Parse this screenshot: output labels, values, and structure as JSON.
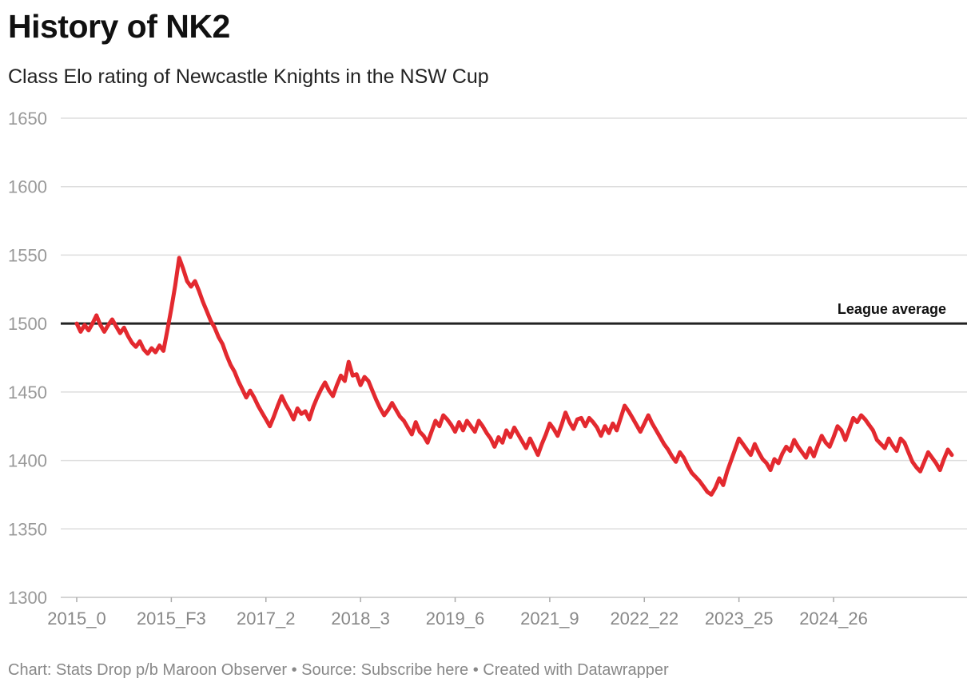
{
  "title": "History of NK2",
  "subtitle": "Class Elo rating of Newcastle Knights in the NSW Cup",
  "footer": "Chart: Stats Drop p/b Maroon Observer • Source: Subscribe here • Created with Datawrapper",
  "colors": {
    "line": "#e3292f",
    "reference": "#222222",
    "grid": "#dddddd",
    "tick_text": "#999999",
    "axis_text": "#888888"
  },
  "chart_data": {
    "type": "line",
    "title": "History of NK2",
    "subtitle": "Class Elo rating of Newcastle Knights in the NSW Cup",
    "xlabel": "",
    "ylabel": "",
    "ylim": [
      1300,
      1650
    ],
    "yticks": [
      1300,
      1350,
      1400,
      1450,
      1500,
      1550,
      1600,
      1650
    ],
    "xtick_labels": [
      "2015_0",
      "2015_F3",
      "2017_2",
      "2018_3",
      "2019_6",
      "2021_9",
      "2022_22",
      "2023_25",
      "2024_26"
    ],
    "xtick_indices": [
      0,
      24,
      48,
      72,
      96,
      120,
      144,
      168,
      192
    ],
    "reference_line": {
      "value": 1500,
      "label": "League average"
    },
    "grid": true,
    "series": [
      {
        "name": "NK2",
        "values": [
          1500,
          1494,
          1499,
          1495,
          1500,
          1506,
          1499,
          1494,
          1499,
          1503,
          1498,
          1493,
          1497,
          1491,
          1486,
          1483,
          1487,
          1481,
          1478,
          1482,
          1479,
          1484,
          1480,
          1495,
          1511,
          1528,
          1548,
          1540,
          1531,
          1527,
          1531,
          1524,
          1516,
          1509,
          1502,
          1497,
          1490,
          1485,
          1477,
          1470,
          1465,
          1458,
          1452,
          1446,
          1451,
          1446,
          1440,
          1435,
          1430,
          1425,
          1432,
          1440,
          1447,
          1441,
          1436,
          1430,
          1438,
          1434,
          1436,
          1430,
          1439,
          1446,
          1452,
          1457,
          1451,
          1447,
          1455,
          1462,
          1458,
          1472,
          1462,
          1463,
          1455,
          1461,
          1458,
          1451,
          1444,
          1438,
          1433,
          1437,
          1442,
          1437,
          1432,
          1429,
          1424,
          1419,
          1428,
          1421,
          1418,
          1413,
          1421,
          1429,
          1425,
          1433,
          1430,
          1426,
          1421,
          1428,
          1422,
          1429,
          1425,
          1421,
          1429,
          1425,
          1420,
          1416,
          1410,
          1417,
          1413,
          1422,
          1417,
          1424,
          1419,
          1414,
          1409,
          1416,
          1410,
          1404,
          1412,
          1419,
          1427,
          1423,
          1418,
          1426,
          1435,
          1428,
          1423,
          1430,
          1431,
          1425,
          1431,
          1428,
          1424,
          1418,
          1425,
          1420,
          1427,
          1422,
          1431,
          1440,
          1436,
          1431,
          1426,
          1421,
          1427,
          1433,
          1427,
          1422,
          1417,
          1412,
          1408,
          1403,
          1399,
          1406,
          1402,
          1396,
          1391,
          1388,
          1385,
          1381,
          1377,
          1375,
          1380,
          1387,
          1382,
          1392,
          1400,
          1408,
          1416,
          1412,
          1408,
          1404,
          1412,
          1406,
          1401,
          1398,
          1393,
          1401,
          1398,
          1405,
          1410,
          1407,
          1415,
          1410,
          1406,
          1402,
          1409,
          1403,
          1411,
          1418,
          1413,
          1410,
          1417,
          1425,
          1422,
          1415,
          1423,
          1431,
          1428,
          1433,
          1430,
          1426,
          1422,
          1415,
          1412,
          1409,
          1416,
          1411,
          1407,
          1416,
          1413,
          1406,
          1399,
          1395,
          1392,
          1399,
          1406,
          1402,
          1398,
          1393,
          1401,
          1408,
          1404
        ]
      }
    ]
  }
}
